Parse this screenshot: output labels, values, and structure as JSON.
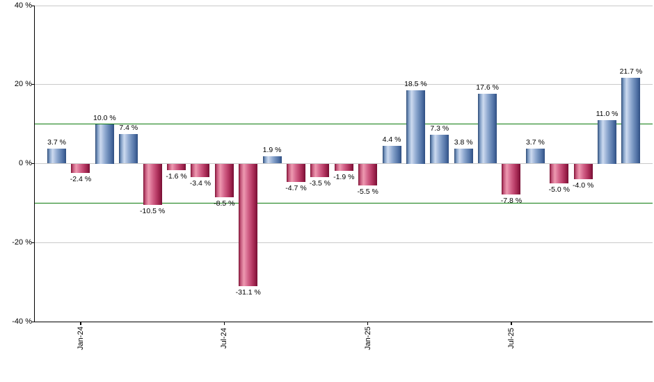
{
  "chart_data": {
    "type": "bar",
    "title": "",
    "unit": "%",
    "ylim": [
      -40,
      40
    ],
    "grid": "horizontal",
    "legend": "none",
    "y_axis": {
      "ticks": [
        {
          "value": 40,
          "label": "40 %"
        },
        {
          "value": 20,
          "label": "20 %"
        },
        {
          "value": 0,
          "label": "0 %"
        },
        {
          "value": -20,
          "label": "-20 %"
        },
        {
          "value": -40,
          "label": "-40 %"
        }
      ]
    },
    "x_axis": {
      "ticks": [
        {
          "bar_index": 1,
          "label": "Jan-24"
        },
        {
          "bar_index": 7,
          "label": "Jul-24"
        },
        {
          "bar_index": 13,
          "label": "Jan-25"
        },
        {
          "bar_index": 19,
          "label": "Jul-25"
        }
      ]
    },
    "reference_lines": [
      10,
      -10
    ],
    "bars": [
      {
        "value": 3.7,
        "label": "3.7 %"
      },
      {
        "value": -2.4,
        "label": "-2.4 %"
      },
      {
        "value": 10.0,
        "label": "10.0 %"
      },
      {
        "value": 7.4,
        "label": "7.4 %"
      },
      {
        "value": -10.5,
        "label": "-10.5 %"
      },
      {
        "value": -1.6,
        "label": "-1.6 %"
      },
      {
        "value": -3.4,
        "label": "-3.4 %"
      },
      {
        "value": -8.5,
        "label": "-8.5 %"
      },
      {
        "value": -31.1,
        "label": "-31.1 %"
      },
      {
        "value": 1.9,
        "label": "1.9 %"
      },
      {
        "value": -4.7,
        "label": "-4.7 %"
      },
      {
        "value": -3.5,
        "label": "-3.5 %"
      },
      {
        "value": -1.9,
        "label": "-1.9 %"
      },
      {
        "value": -5.5,
        "label": "-5.5 %"
      },
      {
        "value": 4.4,
        "label": "4.4 %"
      },
      {
        "value": 18.5,
        "label": "18.5 %"
      },
      {
        "value": 7.3,
        "label": "7.3 %"
      },
      {
        "value": 3.8,
        "label": "3.8 %"
      },
      {
        "value": 17.6,
        "label": "17.6 %"
      },
      {
        "value": -7.8,
        "label": "-7.8 %"
      },
      {
        "value": 3.7,
        "label": "3.7 %"
      },
      {
        "value": -5.0,
        "label": "-5.0 %"
      },
      {
        "value": -4.0,
        "label": "-4.0 %"
      },
      {
        "value": 11.0,
        "label": "11.0 %"
      },
      {
        "value": 21.7,
        "label": "21.7 %"
      }
    ],
    "colors": {
      "positive_bar": "#6f8fc0",
      "negative_bar": "#c43a62",
      "reference_line": "#0b7a0b",
      "gridline": "#c9c9c9",
      "axis": "#000000",
      "label_text": "#000000",
      "background": "#ffffff"
    }
  }
}
